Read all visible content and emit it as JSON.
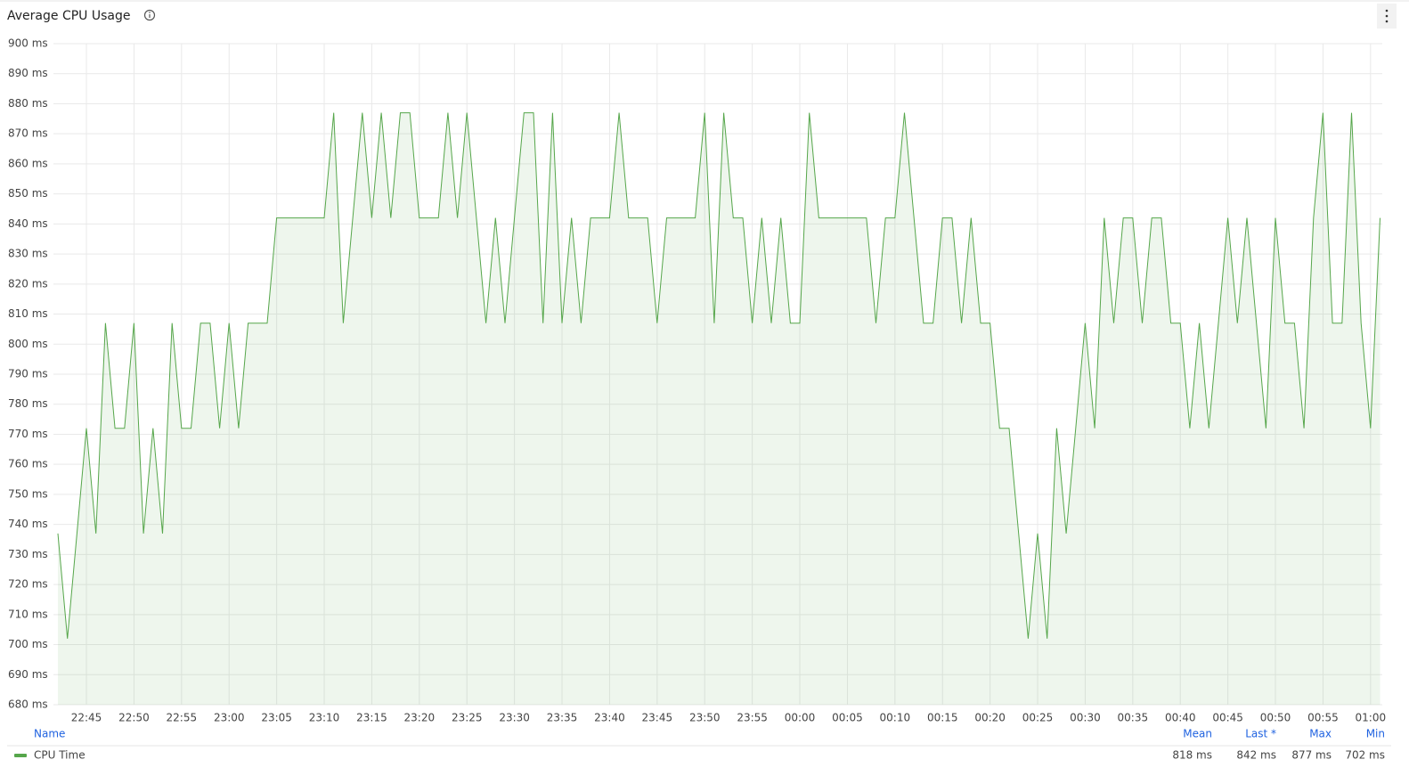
{
  "chart_data": {
    "type": "line",
    "title": "Average CPU Usage",
    "x": [
      null,
      null,
      null,
      "22:45",
      null,
      null,
      null,
      null,
      "22:50",
      null,
      null,
      null,
      null,
      "22:55",
      null,
      null,
      null,
      null,
      "23:00",
      null,
      null,
      null,
      null,
      "23:05",
      null,
      null,
      null,
      null,
      "23:10",
      null,
      null,
      null,
      null,
      "23:15",
      null,
      null,
      null,
      null,
      "23:20",
      null,
      null,
      null,
      null,
      "23:25",
      null,
      null,
      null,
      null,
      "23:30",
      null,
      null,
      null,
      null,
      "23:35",
      null,
      null,
      null,
      null,
      "23:40",
      null,
      null,
      null,
      null,
      "23:45",
      null,
      null,
      null,
      null,
      "23:50",
      null,
      null,
      null,
      null,
      "23:55",
      null,
      null,
      null,
      null,
      "00:00",
      null,
      null,
      null,
      null,
      "00:05",
      null,
      null,
      null,
      null,
      "00:10",
      null,
      null,
      null,
      null,
      "00:15",
      null,
      null,
      null,
      null,
      "00:20",
      null,
      null,
      null,
      null,
      "00:25",
      null,
      null,
      null,
      null,
      "00:30",
      null,
      null,
      null,
      null,
      "00:35",
      null,
      null,
      null,
      null,
      "00:40",
      null,
      null,
      null,
      null,
      "00:45",
      null,
      null,
      null,
      null,
      "00:50",
      null,
      null,
      null,
      null,
      "00:55",
      null,
      null,
      null,
      null,
      "01:00",
      null
    ],
    "series": [
      {
        "name": "CPU Time",
        "color": "#56a64b",
        "values": [
          737,
          702,
          737,
          772,
          737,
          807,
          772,
          772,
          807,
          737,
          772,
          737,
          807,
          772,
          772,
          807,
          807,
          772,
          807,
          772,
          807,
          807,
          807,
          842,
          842,
          842,
          842,
          842,
          842,
          877,
          807,
          842,
          877,
          842,
          877,
          842,
          877,
          877,
          842,
          842,
          842,
          877,
          842,
          877,
          842,
          807,
          842,
          807,
          842,
          877,
          877,
          807,
          877,
          807,
          842,
          807,
          842,
          842,
          842,
          877,
          842,
          842,
          842,
          807,
          842,
          842,
          842,
          842,
          877,
          807,
          877,
          842,
          842,
          807,
          842,
          807,
          842,
          807,
          807,
          877,
          842,
          842,
          842,
          842,
          842,
          842,
          807,
          842,
          842,
          877,
          842,
          807,
          807,
          842,
          842,
          807,
          842,
          807,
          807,
          772,
          772,
          737,
          702,
          737,
          702,
          772,
          737,
          772,
          807,
          772,
          842,
          807,
          842,
          842,
          807,
          842,
          842,
          807,
          807,
          772,
          807,
          772,
          807,
          842,
          807,
          842,
          807,
          772,
          842,
          807,
          807,
          772,
          842,
          877,
          807,
          807,
          877,
          807,
          772,
          842
        ]
      }
    ],
    "ylim": [
      680,
      900
    ],
    "yticks": [
      {
        "value": 680,
        "label": "680 ms"
      },
      {
        "value": 690,
        "label": "690 ms"
      },
      {
        "value": 700,
        "label": "700 ms"
      },
      {
        "value": 710,
        "label": "710 ms"
      },
      {
        "value": 720,
        "label": "720 ms"
      },
      {
        "value": 730,
        "label": "730 ms"
      },
      {
        "value": 740,
        "label": "740 ms"
      },
      {
        "value": 750,
        "label": "750 ms"
      },
      {
        "value": 760,
        "label": "760 ms"
      },
      {
        "value": 770,
        "label": "770 ms"
      },
      {
        "value": 780,
        "label": "780 ms"
      },
      {
        "value": 790,
        "label": "790 ms"
      },
      {
        "value": 800,
        "label": "800 ms"
      },
      {
        "value": 810,
        "label": "810 ms"
      },
      {
        "value": 820,
        "label": "820 ms"
      },
      {
        "value": 830,
        "label": "830 ms"
      },
      {
        "value": 840,
        "label": "840 ms"
      },
      {
        "value": 850,
        "label": "850 ms"
      },
      {
        "value": 860,
        "label": "860 ms"
      },
      {
        "value": 870,
        "label": "870 ms"
      },
      {
        "value": 880,
        "label": "880 ms"
      },
      {
        "value": 890,
        "label": "890 ms"
      },
      {
        "value": 900,
        "label": "900 ms"
      }
    ],
    "grid": true,
    "legend_columns": [
      "Name",
      "Mean",
      "Last *",
      "Max",
      "Min"
    ],
    "legend_values": [
      818,
      842,
      877,
      702
    ],
    "legend_value_labels": [
      "818 ms",
      "842 ms",
      "877 ms",
      "702 ms"
    ]
  }
}
